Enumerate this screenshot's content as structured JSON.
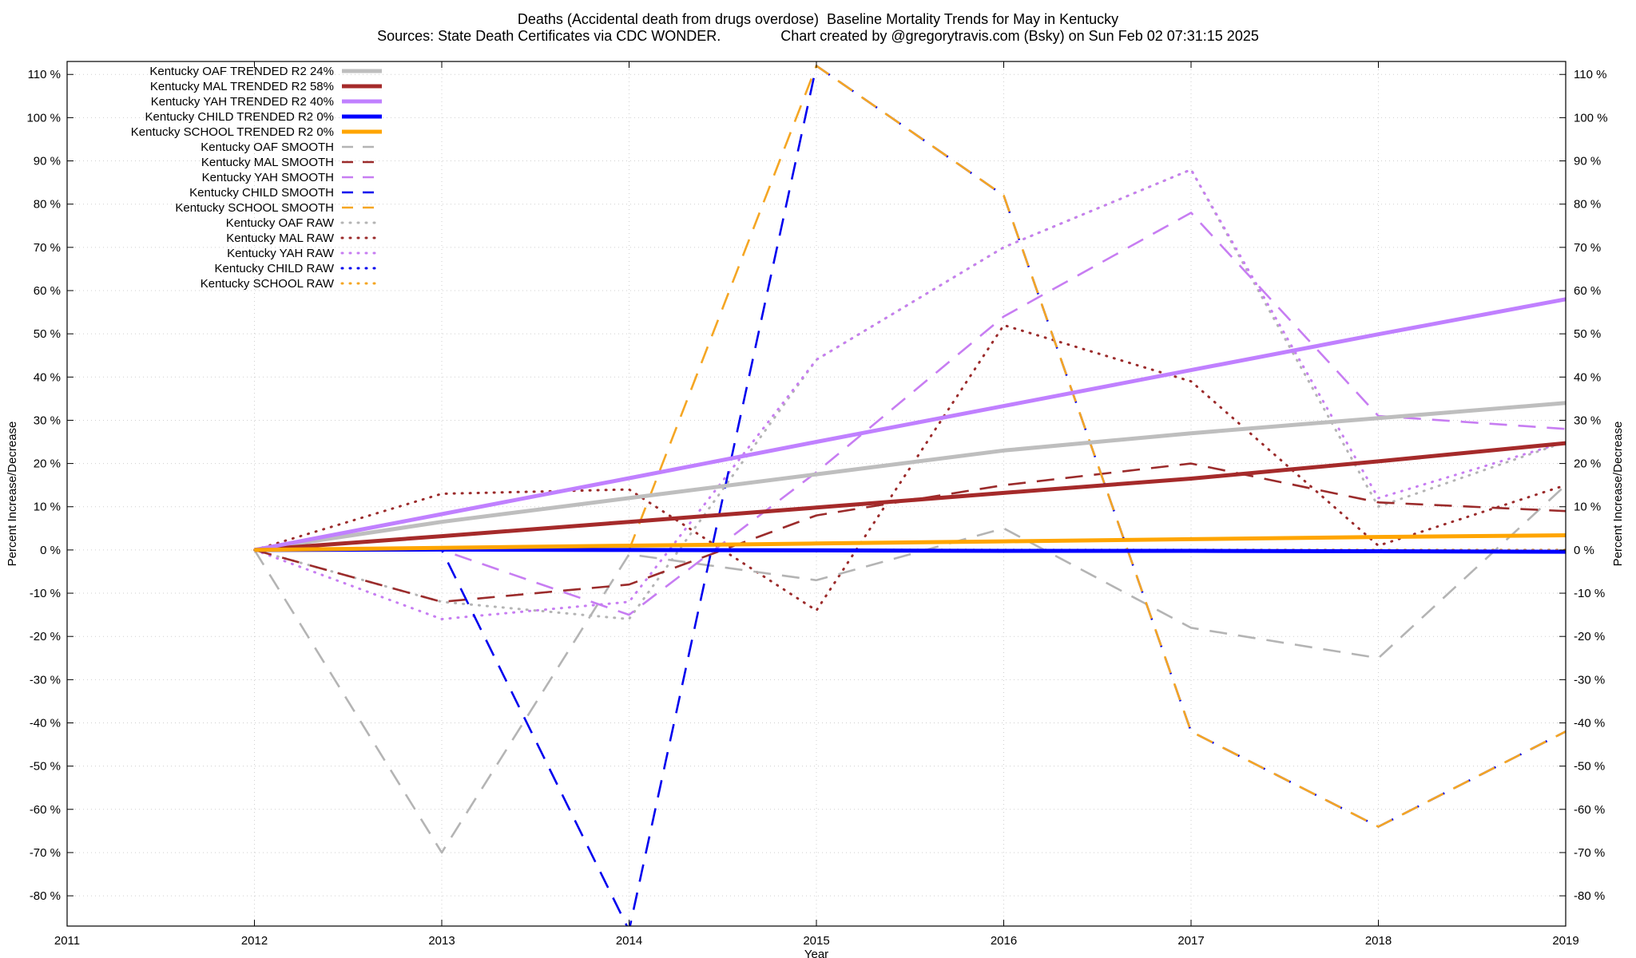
{
  "title": "Deaths (Accidental death from drugs overdose)  Baseline Mortality Trends for May in Kentucky",
  "subtitle": "Sources: State Death Certificates via CDC WONDER.               Chart created by @gregorytravis.com (Bsky) on Sun Feb 02 07:31:15 2025",
  "chart_data": {
    "type": "line",
    "xlabel": "Year",
    "ylabel": "Percent Increase/Decrease",
    "y2label": "Percent Increase/Decrease",
    "xlim": [
      2011,
      2019
    ],
    "ylim": [
      -87,
      113
    ],
    "x_ticks": [
      "2011",
      "2012",
      "2013",
      "2014",
      "2015",
      "2016",
      "2017",
      "2018",
      "2019"
    ],
    "y_ticks": [
      "110 %",
      "100 %",
      "90 %",
      "80 %",
      "70 %",
      "60 %",
      "50 %",
      "40 %",
      "30 %",
      "20 %",
      "10 %",
      "0 %",
      "-10 %",
      "-20 %",
      "-30 %",
      "-40 %",
      "-50 %",
      "-60 %",
      "-70 %",
      "-80 %"
    ],
    "grid": true,
    "legend_position": "top-left",
    "series": [
      {
        "name": "Kentucky OAF RAW",
        "color": "#b4b4b4",
        "style": "dotted",
        "x": [
          2012,
          2013,
          2014,
          2015,
          2016,
          2017,
          2018,
          2019
        ],
        "values": [
          0,
          -12,
          -16,
          44,
          70,
          88,
          10,
          25
        ]
      },
      {
        "name": "Kentucky MAL RAW",
        "color": "#9b2b2b",
        "style": "dotted",
        "x": [
          2012,
          2013,
          2014,
          2015,
          2016,
          2017,
          2018,
          2019
        ],
        "values": [
          0,
          13,
          14,
          -14,
          52,
          39,
          1,
          15
        ]
      },
      {
        "name": "Kentucky YAH RAW",
        "color": "#c77df2",
        "style": "dotted",
        "x": [
          2012,
          2013,
          2014,
          2015,
          2016,
          2017,
          2018,
          2019
        ],
        "values": [
          0,
          -16,
          -12,
          44,
          70,
          88,
          12,
          25
        ]
      },
      {
        "name": "Kentucky CHILD RAW",
        "color": "#0000ee",
        "style": "dotted",
        "x": [
          2012,
          2013,
          2014,
          2015,
          2016,
          2017,
          2018,
          2019
        ],
        "values": [
          0,
          0,
          0,
          0,
          0,
          0,
          0,
          0
        ]
      },
      {
        "name": "Kentucky SCHOOL RAW",
        "color": "#f5a623",
        "style": "dotted",
        "x": [
          2012,
          2013,
          2014,
          2015,
          2016,
          2017,
          2018,
          2019
        ],
        "values": [
          0,
          0,
          0,
          0,
          0,
          0,
          0,
          0
        ]
      },
      {
        "name": "Kentucky OAF SMOOTH",
        "color": "#b4b4b4",
        "style": "dashed",
        "x": [
          2012,
          2013,
          2014,
          2015,
          2016,
          2017,
          2018,
          2019
        ],
        "values": [
          0,
          -70,
          -1,
          -7,
          5,
          -18,
          -25,
          15
        ]
      },
      {
        "name": "Kentucky MAL SMOOTH",
        "color": "#9b2b2b",
        "style": "dashed",
        "x": [
          2012,
          2013,
          2014,
          2015,
          2016,
          2017,
          2018,
          2019
        ],
        "values": [
          0,
          -12,
          -8,
          8,
          15,
          20,
          11,
          9
        ]
      },
      {
        "name": "Kentucky YAH SMOOTH",
        "color": "#c77df2",
        "style": "dashed",
        "x": [
          2012,
          2013,
          2014,
          2015,
          2016,
          2017,
          2018,
          2019
        ],
        "values": [
          0,
          0,
          -15,
          18,
          54,
          78,
          31,
          28
        ]
      },
      {
        "name": "Kentucky CHILD SMOOTH",
        "color": "#0000ee",
        "style": "dashed",
        "x": [
          2012,
          2013,
          2014,
          2015,
          2016,
          2017,
          2018,
          2019
        ],
        "values": [
          0,
          0,
          -88,
          112,
          82,
          -42,
          -64,
          -42
        ]
      },
      {
        "name": "Kentucky SCHOOL SMOOTH",
        "color": "#f5a623",
        "style": "dashed",
        "x": [
          2012,
          2013,
          2014,
          2015,
          2016,
          2017,
          2018,
          2019
        ],
        "values": [
          0,
          0,
          0,
          112,
          82,
          -42,
          -64,
          -42
        ]
      },
      {
        "name": "Kentucky OAF TRENDED R2  24%",
        "color": "#bebebe",
        "style": "solid",
        "x": [
          2012,
          2013,
          2014,
          2015,
          2016,
          2017,
          2018,
          2019
        ],
        "values": [
          0,
          6.5,
          12,
          17.5,
          23,
          27,
          30.5,
          34
        ]
      },
      {
        "name": "Kentucky MAL TRENDED R2  58%",
        "color": "#a52a2a",
        "style": "solid",
        "x": [
          2012,
          2013,
          2014,
          2015,
          2016,
          2017,
          2018,
          2019
        ],
        "values": [
          0,
          3.2,
          6.5,
          9.8,
          13.2,
          16.5,
          20.5,
          24.7
        ]
      },
      {
        "name": "Kentucky YAH TRENDED R2  40%",
        "color": "#c080ff",
        "style": "solid",
        "x": [
          2012,
          2013,
          2014,
          2015,
          2016,
          2017,
          2018,
          2019
        ],
        "values": [
          0,
          8.3,
          16.6,
          25,
          33.3,
          41.6,
          49.9,
          58
        ]
      },
      {
        "name": "Kentucky CHILD TRENDED R2  0%",
        "color": "#0000ff",
        "style": "solid",
        "x": [
          2012,
          2013,
          2014,
          2015,
          2016,
          2017,
          2018,
          2019
        ],
        "values": [
          0,
          0.1,
          0,
          -0.1,
          -0.2,
          -0.2,
          -0.3,
          -0.4
        ]
      },
      {
        "name": "Kentucky SCHOOL TRENDED R2  0%",
        "color": "#ffa500",
        "style": "solid",
        "x": [
          2012,
          2013,
          2014,
          2015,
          2016,
          2017,
          2018,
          2019
        ],
        "values": [
          0,
          0.5,
          1,
          1.5,
          2,
          2.5,
          3,
          3.4
        ]
      }
    ],
    "legend_entries": [
      {
        "label": "Kentucky OAF TRENDED R2  24%",
        "color": "#bebebe",
        "style": "solid"
      },
      {
        "label": "Kentucky MAL TRENDED R2  58%",
        "color": "#a52a2a",
        "style": "solid"
      },
      {
        "label": "Kentucky YAH TRENDED R2  40%",
        "color": "#c080ff",
        "style": "solid"
      },
      {
        "label": "Kentucky CHILD TRENDED R2  0%",
        "color": "#0000ff",
        "style": "solid"
      },
      {
        "label": "Kentucky SCHOOL TRENDED R2  0%",
        "color": "#ffa500",
        "style": "solid"
      },
      {
        "label": "Kentucky OAF SMOOTH",
        "color": "#b4b4b4",
        "style": "dashed"
      },
      {
        "label": "Kentucky MAL SMOOTH",
        "color": "#9b2b2b",
        "style": "dashed"
      },
      {
        "label": "Kentucky YAH SMOOTH",
        "color": "#c77df2",
        "style": "dashed"
      },
      {
        "label": "Kentucky CHILD SMOOTH",
        "color": "#0000ee",
        "style": "dashed"
      },
      {
        "label": "Kentucky SCHOOL SMOOTH",
        "color": "#f5a623",
        "style": "dashed"
      },
      {
        "label": "Kentucky OAF RAW",
        "color": "#b4b4b4",
        "style": "dotted"
      },
      {
        "label": "Kentucky MAL RAW",
        "color": "#9b2b2b",
        "style": "dotted"
      },
      {
        "label": "Kentucky YAH RAW",
        "color": "#c77df2",
        "style": "dotted"
      },
      {
        "label": "Kentucky CHILD RAW",
        "color": "#0000ee",
        "style": "dotted"
      },
      {
        "label": "Kentucky SCHOOL RAW",
        "color": "#f5a623",
        "style": "dotted"
      }
    ]
  }
}
